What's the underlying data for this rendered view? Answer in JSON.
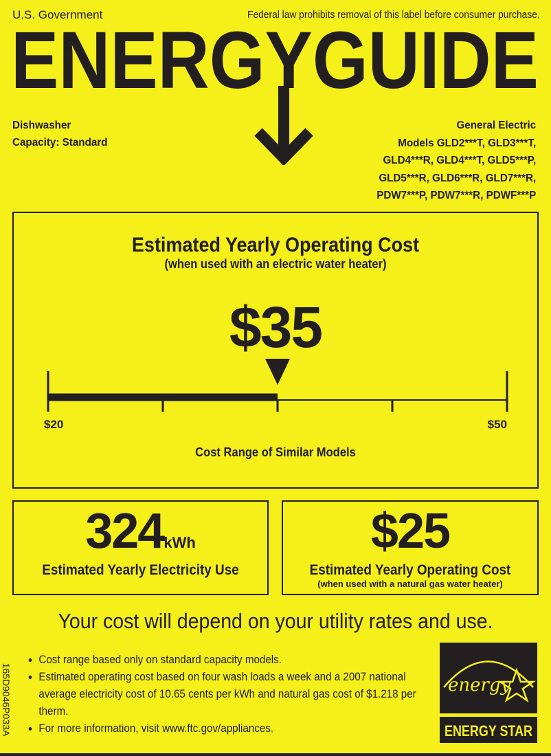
{
  "header": {
    "issuer": "U.S. Government",
    "notice": "Federal law prohibits removal of this label before consumer purchase.",
    "logo_text": "ENERGYGUIDE"
  },
  "product": {
    "type": "Dishwasher",
    "capacity": "Capacity: Standard",
    "manufacturer": "General Electric",
    "model_lines": [
      "Models GLD2***T, GLD3***T,",
      "GLD4***R, GLD4***T, GLD5***P,",
      "GLD5***R, GLD6***R, GLD7***R,",
      "PDW7***P, PDW7***R, PDWF***P"
    ]
  },
  "main_cost": {
    "title": "Estimated Yearly Operating Cost",
    "subtitle": "(when used with an electric water heater)",
    "value": "$35",
    "value_number": 35,
    "range_min": 20,
    "range_max": 50,
    "range_min_label": "$20",
    "range_max_label": "$50",
    "range_label": "Cost Range of Similar Models"
  },
  "electricity": {
    "value": "324",
    "unit": "kWh",
    "label": "Estimated Yearly Electricity Use"
  },
  "gas_cost": {
    "value": "$25",
    "label": "Estimated Yearly Operating Cost",
    "sub": "(when used with a natural gas water heater)"
  },
  "footer": {
    "depend": "Your cost will depend on your utility rates and use.",
    "notes": [
      "Cost range based only on standard capacity models.",
      "Estimated operating cost based on four wash loads a week and a 2007 national average electricity cost of 10.65 cents per kWh and natural gas cost of $1.218 per therm.",
      "For more information, visit www.ftc.gov/appliances."
    ],
    "side_code": "165D9046P033A",
    "energy_star_script": "energy",
    "energy_star_label": "ENERGY STAR"
  },
  "colors": {
    "background": "#f5ef1a",
    "ink": "#231f20"
  }
}
